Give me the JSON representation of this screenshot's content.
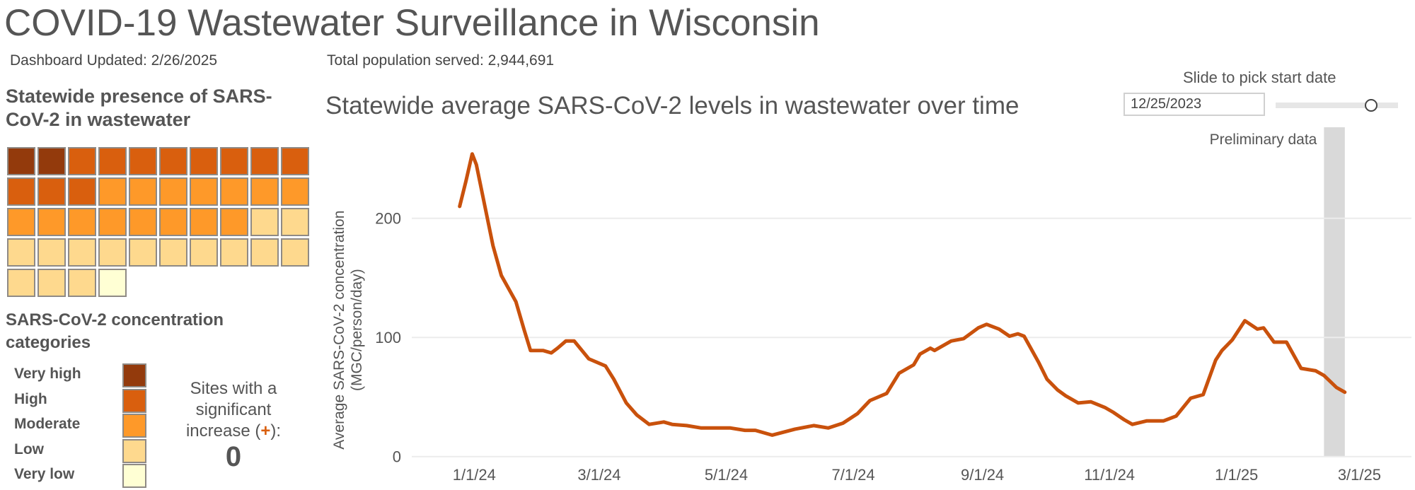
{
  "header": {
    "title": "COVID-19 Wastewater Surveillance in Wisconsin",
    "updated": "Dashboard Updated: 2/26/2025",
    "population": "Total population served: 2,944,691"
  },
  "left_panel": {
    "heading": "Statewide presence of SARS-CoV-2 in wastewater",
    "site_grid": {
      "rows": [
        [
          "Very high",
          "Very high",
          "High",
          "High",
          "High",
          "High",
          "High",
          "High",
          "High",
          "High"
        ],
        [
          "High",
          "High",
          "High",
          "Moderate",
          "Moderate",
          "Moderate",
          "Moderate",
          "Moderate",
          "Moderate",
          "Moderate"
        ],
        [
          "Moderate",
          "Moderate",
          "Moderate",
          "Moderate",
          "Moderate",
          "Moderate",
          "Moderate",
          "Moderate",
          "Low",
          "Low"
        ],
        [
          "Low",
          "Low",
          "Low",
          "Low",
          "Low",
          "Low",
          "Low",
          "Low",
          "Low",
          "Low"
        ],
        [
          "Low",
          "Low",
          "Low",
          "Very low"
        ]
      ]
    },
    "categories_heading": "SARS-CoV-2 concentration categories",
    "legend": [
      {
        "label": "Very high",
        "color": "#933a0c"
      },
      {
        "label": "High",
        "color": "#d95f0e"
      },
      {
        "label": "Moderate",
        "color": "#fe9929"
      },
      {
        "label": "Low",
        "color": "#fed98e"
      },
      {
        "label": "Very low",
        "color": "#ffffd4"
      }
    ],
    "sites_text_1": "Sites with a significant increase (",
    "sites_plus": "+",
    "sites_text_2": "):",
    "sites_count": "0"
  },
  "slider": {
    "label": "Slide to pick start date",
    "value": "12/25/2023",
    "position": 0.78
  },
  "chart_data": {
    "type": "line",
    "title": "Statewide average SARS-CoV-2 levels in wastewater over time",
    "ylabel": "Average SARS-CoV-2 concentration (MGC/person/day)",
    "ylabel_line1": "Average SARS-CoV-2 concentration",
    "ylabel_line2": "(MGC/person/day)",
    "xlabel": "",
    "ylim": [
      0,
      260
    ],
    "xlim": [
      "2023-12-02",
      "2025-03-26"
    ],
    "yticks": [
      0,
      100,
      200
    ],
    "xticks": [
      {
        "date": "2024-01-01",
        "label": "1/1/24"
      },
      {
        "date": "2024-03-01",
        "label": "3/1/24"
      },
      {
        "date": "2024-05-01",
        "label": "5/1/24"
      },
      {
        "date": "2024-07-01",
        "label": "7/1/24"
      },
      {
        "date": "2024-09-01",
        "label": "9/1/24"
      },
      {
        "date": "2024-11-01",
        "label": "11/1/24"
      },
      {
        "date": "2025-01-01",
        "label": "1/1/25"
      },
      {
        "date": "2025-03-01",
        "label": "3/1/25"
      }
    ],
    "grid": "horizontal",
    "line_color": "#c9510c",
    "preliminary": {
      "label": "Preliminary data",
      "start": "2025-02-12",
      "end": "2025-02-22",
      "color": "#d9d9d9"
    },
    "x": [
      "2023-12-25",
      "2023-12-28",
      "2023-12-31",
      "2024-01-02",
      "2024-01-08",
      "2024-01-10",
      "2024-01-14",
      "2024-01-21",
      "2024-01-25",
      "2024-01-28",
      "2024-02-03",
      "2024-02-07",
      "2024-02-10",
      "2024-02-14",
      "2024-02-18",
      "2024-02-25",
      "2024-03-04",
      "2024-03-08",
      "2024-03-14",
      "2024-03-19",
      "2024-03-25",
      "2024-04-01",
      "2024-04-05",
      "2024-04-12",
      "2024-04-19",
      "2024-05-03",
      "2024-05-10",
      "2024-05-15",
      "2024-05-23",
      "2024-06-03",
      "2024-06-12",
      "2024-06-19",
      "2024-06-26",
      "2024-07-03",
      "2024-07-09",
      "2024-07-17",
      "2024-07-23",
      "2024-07-30",
      "2024-08-02",
      "2024-08-07",
      "2024-08-09",
      "2024-08-17",
      "2024-08-23",
      "2024-08-30",
      "2024-09-03",
      "2024-09-09",
      "2024-09-14",
      "2024-09-18",
      "2024-09-21",
      "2024-09-28",
      "2024-10-02",
      "2024-10-07",
      "2024-10-11",
      "2024-10-17",
      "2024-10-23",
      "2024-10-30",
      "2024-11-03",
      "2024-11-08",
      "2024-11-12",
      "2024-11-19",
      "2024-11-27",
      "2024-12-03",
      "2024-12-10",
      "2024-12-16",
      "2024-12-22",
      "2024-12-25",
      "2024-12-30",
      "2025-01-05",
      "2025-01-11",
      "2025-01-14",
      "2025-01-19",
      "2025-01-25",
      "2025-02-01",
      "2025-02-08",
      "2025-02-12",
      "2025-02-18",
      "2025-02-22"
    ],
    "values": [
      210,
      231,
      254,
      245,
      194,
      177,
      152,
      130,
      106,
      89,
      89,
      87,
      91,
      97,
      97,
      82,
      76,
      65,
      45,
      35,
      27,
      29,
      27,
      26,
      24,
      24,
      22,
      22,
      18,
      23,
      26,
      24,
      28,
      36,
      47,
      53,
      70,
      77,
      86,
      91,
      89,
      97,
      99,
      108,
      111,
      107,
      101,
      103,
      101,
      79,
      65,
      56,
      51,
      45,
      46,
      41,
      37,
      31,
      27,
      30,
      30,
      34,
      49,
      52,
      81,
      89,
      98,
      114,
      107,
      108,
      96,
      96,
      74,
      72,
      68,
      58,
      54
    ]
  }
}
